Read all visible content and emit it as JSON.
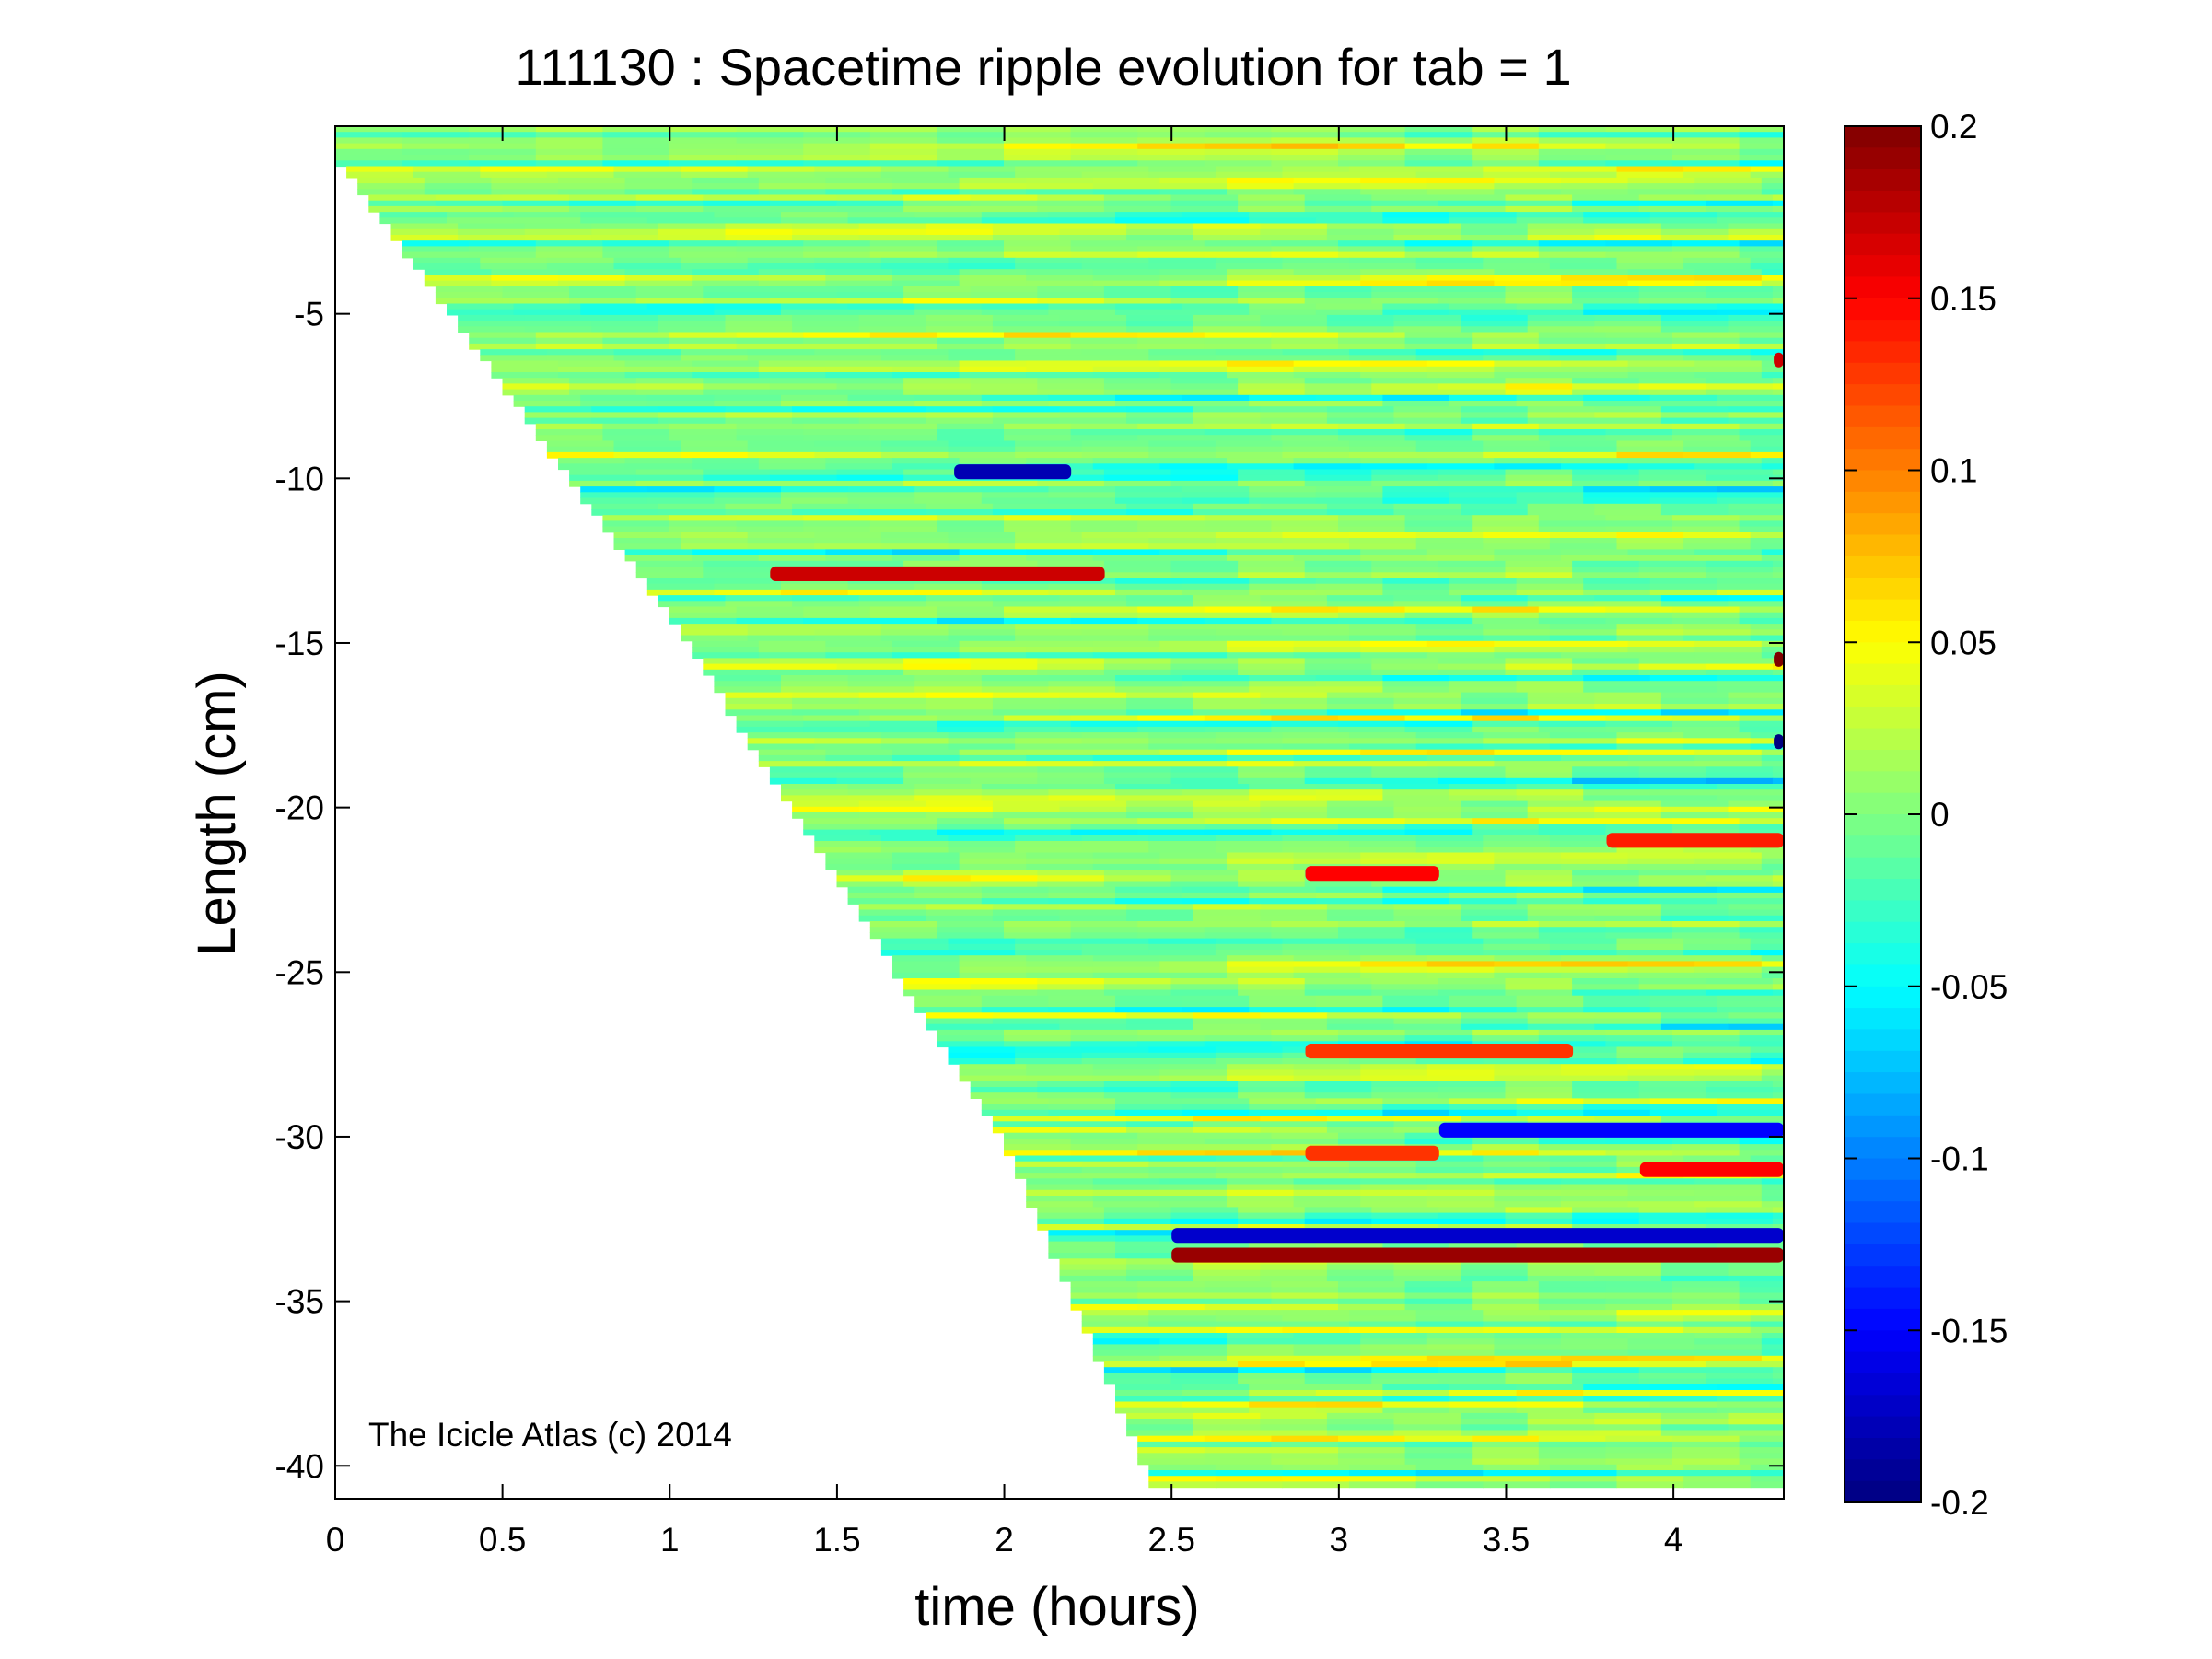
{
  "chart_data": {
    "type": "heatmap",
    "title": "111130 : Spacetime ripple evolution for tab = 1",
    "xlabel": "time (hours)",
    "ylabel": "Length (cm)",
    "xlim": [
      0,
      4.33
    ],
    "ylim": [
      -41,
      0.7
    ],
    "xticks": [
      0,
      0.5,
      1,
      1.5,
      2,
      2.5,
      3,
      3.5,
      4
    ],
    "xtick_labels": [
      "0",
      "0.5",
      "1",
      "1.5",
      "2",
      "2.5",
      "3",
      "3.5",
      "4"
    ],
    "yticks": [
      -5,
      -10,
      -15,
      -20,
      -25,
      -30,
      -35,
      -40
    ],
    "ytick_labels": [
      "-5",
      "-10",
      "-15",
      "-20",
      "-25",
      "-30",
      "-35",
      "-40"
    ],
    "colorbar": {
      "colormap": "jet",
      "clim": [
        -0.2,
        0.2
      ],
      "ticks": [
        0.2,
        0.15,
        0.1,
        0.05,
        0,
        -0.05,
        -0.1,
        -0.15,
        -0.2
      ],
      "tick_labels": [
        "0.2",
        "0.15",
        "0.1",
        "0.05",
        "0",
        "-0.05",
        "-0.1",
        "-0.15",
        "-0.2"
      ]
    },
    "data_boundary": {
      "description": "lower-left region is empty; tip length grows with time",
      "tip_length_vs_time": [
        [
          0,
          0
        ],
        [
          1,
          -14
        ],
        [
          2,
          -30
        ],
        [
          2.45,
          -40.5
        ]
      ]
    },
    "grid": false,
    "legend": "none",
    "features": [
      {
        "t0": 1.85,
        "t1": 2.2,
        "y": -9.8,
        "value": -0.18
      },
      {
        "t0": 1.3,
        "t1": 2.3,
        "y": -12.9,
        "value": 0.17
      },
      {
        "t0": 2.5,
        "t1": 4.33,
        "y": -33.6,
        "value": 0.19
      },
      {
        "t0": 2.5,
        "t1": 4.33,
        "y": -33.0,
        "value": -0.17
      },
      {
        "t0": 2.9,
        "t1": 3.3,
        "y": -22.0,
        "value": 0.15
      },
      {
        "t0": 3.8,
        "t1": 4.33,
        "y": -21.0,
        "value": 0.14
      },
      {
        "t0": 2.9,
        "t1": 3.7,
        "y": -27.4,
        "value": 0.13
      },
      {
        "t0": 3.3,
        "t1": 4.33,
        "y": -29.8,
        "value": -0.15
      },
      {
        "t0": 2.9,
        "t1": 3.3,
        "y": -30.5,
        "value": 0.13
      },
      {
        "t0": 3.9,
        "t1": 4.33,
        "y": -31.0,
        "value": 0.15
      },
      {
        "t0": 4.3,
        "t1": 4.33,
        "y": -15.5,
        "value": 0.2
      },
      {
        "t0": 4.3,
        "t1": 4.33,
        "y": -18.0,
        "value": -0.2
      },
      {
        "t0": 4.3,
        "t1": 4.33,
        "y": -6.4,
        "value": 0.17
      }
    ]
  },
  "annotation": "The Icicle Atlas (c) 2014",
  "colors": {
    "background": "#ffffff",
    "field_base": "#7cff7c",
    "axis": "#000000"
  }
}
